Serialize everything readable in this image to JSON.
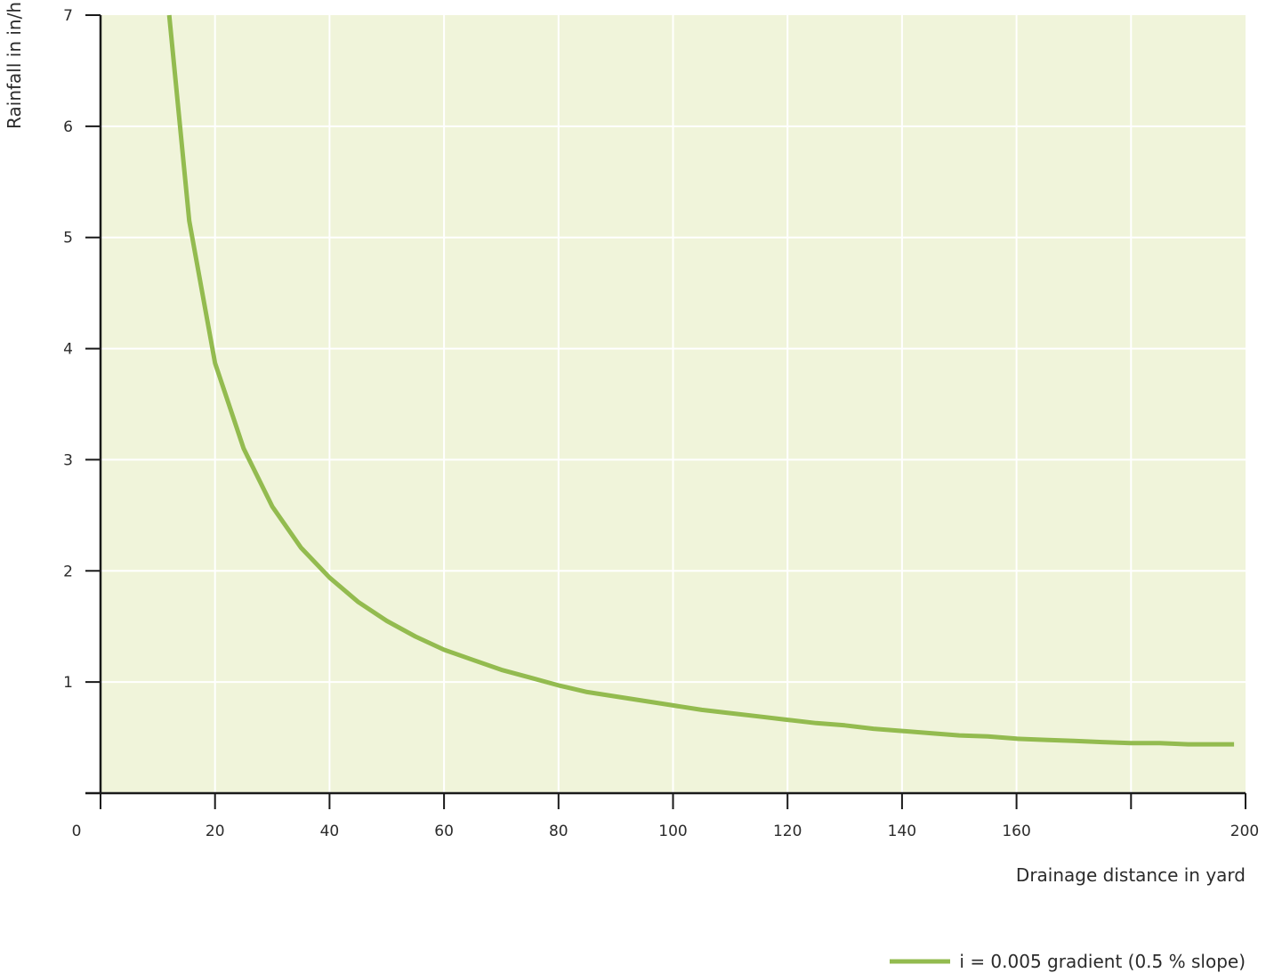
{
  "chart_data": {
    "type": "line",
    "title": "",
    "xlabel": "Drainage distance in  yard",
    "ylabel": "Rainfall in in/h",
    "xlim": [
      0,
      200
    ],
    "ylim": [
      0,
      7
    ],
    "x_ticks": [
      0,
      20,
      40,
      60,
      80,
      100,
      120,
      140,
      160,
      180,
      200
    ],
    "x_tick_labels": [
      "0",
      "20",
      "40",
      "60",
      "80",
      "100",
      "120",
      "140",
      "160",
      "",
      "200"
    ],
    "y_ticks": [
      1,
      2,
      3,
      4,
      5,
      6,
      7
    ],
    "y_tick_labels": [
      "1",
      "2",
      "3",
      "4",
      "5",
      "6",
      "7"
    ],
    "grid": true,
    "legend_position": "bottom-right",
    "colors": {
      "plot_background": "#f0f4da",
      "grid": "#ffffff",
      "axis": "#1a1a1a",
      "series": "#93bb4f"
    },
    "series": [
      {
        "name": "i = 0.005 gradient (0.5 % slope)",
        "x": [
          12,
          15.5,
          20,
          25,
          30,
          35,
          40,
          45,
          50,
          55,
          60,
          65,
          70,
          75,
          80,
          85,
          90,
          95,
          100,
          105,
          110,
          115,
          120,
          125,
          130,
          135,
          140,
          145,
          150,
          155,
          160,
          165,
          170,
          175,
          180,
          185,
          190,
          195,
          198
        ],
        "y": [
          7.0,
          5.15,
          3.87,
          3.1,
          2.58,
          2.21,
          1.94,
          1.72,
          1.55,
          1.41,
          1.29,
          1.2,
          1.11,
          1.04,
          0.97,
          0.91,
          0.87,
          0.83,
          0.79,
          0.75,
          0.72,
          0.69,
          0.66,
          0.63,
          0.61,
          0.58,
          0.56,
          0.54,
          0.52,
          0.51,
          0.49,
          0.48,
          0.47,
          0.46,
          0.45,
          0.45,
          0.44,
          0.44,
          0.44
        ]
      }
    ]
  }
}
